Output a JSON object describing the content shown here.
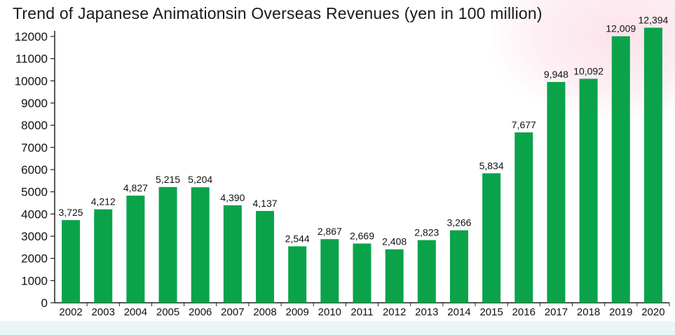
{
  "chart_data": {
    "type": "bar",
    "title": "Trend of Japanese Animationsin Overseas Revenues (yen in 100 million)",
    "xlabel": "",
    "ylabel": "",
    "categories": [
      "2002",
      "2003",
      "2004",
      "2005",
      "2006",
      "2007",
      "2008",
      "2009",
      "2010",
      "2011",
      "2012",
      "2013",
      "2014",
      "2015",
      "2016",
      "2017",
      "2018",
      "2019",
      "2020"
    ],
    "values": [
      3725,
      4212,
      4827,
      5215,
      5204,
      4390,
      4137,
      2544,
      2867,
      2669,
      2408,
      2823,
      3266,
      5834,
      7677,
      9948,
      10092,
      12009,
      12394
    ],
    "value_labels": [
      "3,725",
      "4,212",
      "4,827",
      "5,215",
      "5,204",
      "4,390",
      "4,137",
      "2,544",
      "2,867",
      "2,669",
      "2,408",
      "2,823",
      "3,266",
      "5,834",
      "7,677",
      "9,948",
      "10,092",
      "12,009",
      "12,394"
    ],
    "yticks": [
      0,
      1000,
      2000,
      3000,
      4000,
      5000,
      6000,
      7000,
      8000,
      9000,
      10000,
      11000,
      12000
    ],
    "ylim": [
      0,
      12000
    ],
    "grid": false,
    "legend": "none",
    "bar_color": "#0aa34a"
  }
}
